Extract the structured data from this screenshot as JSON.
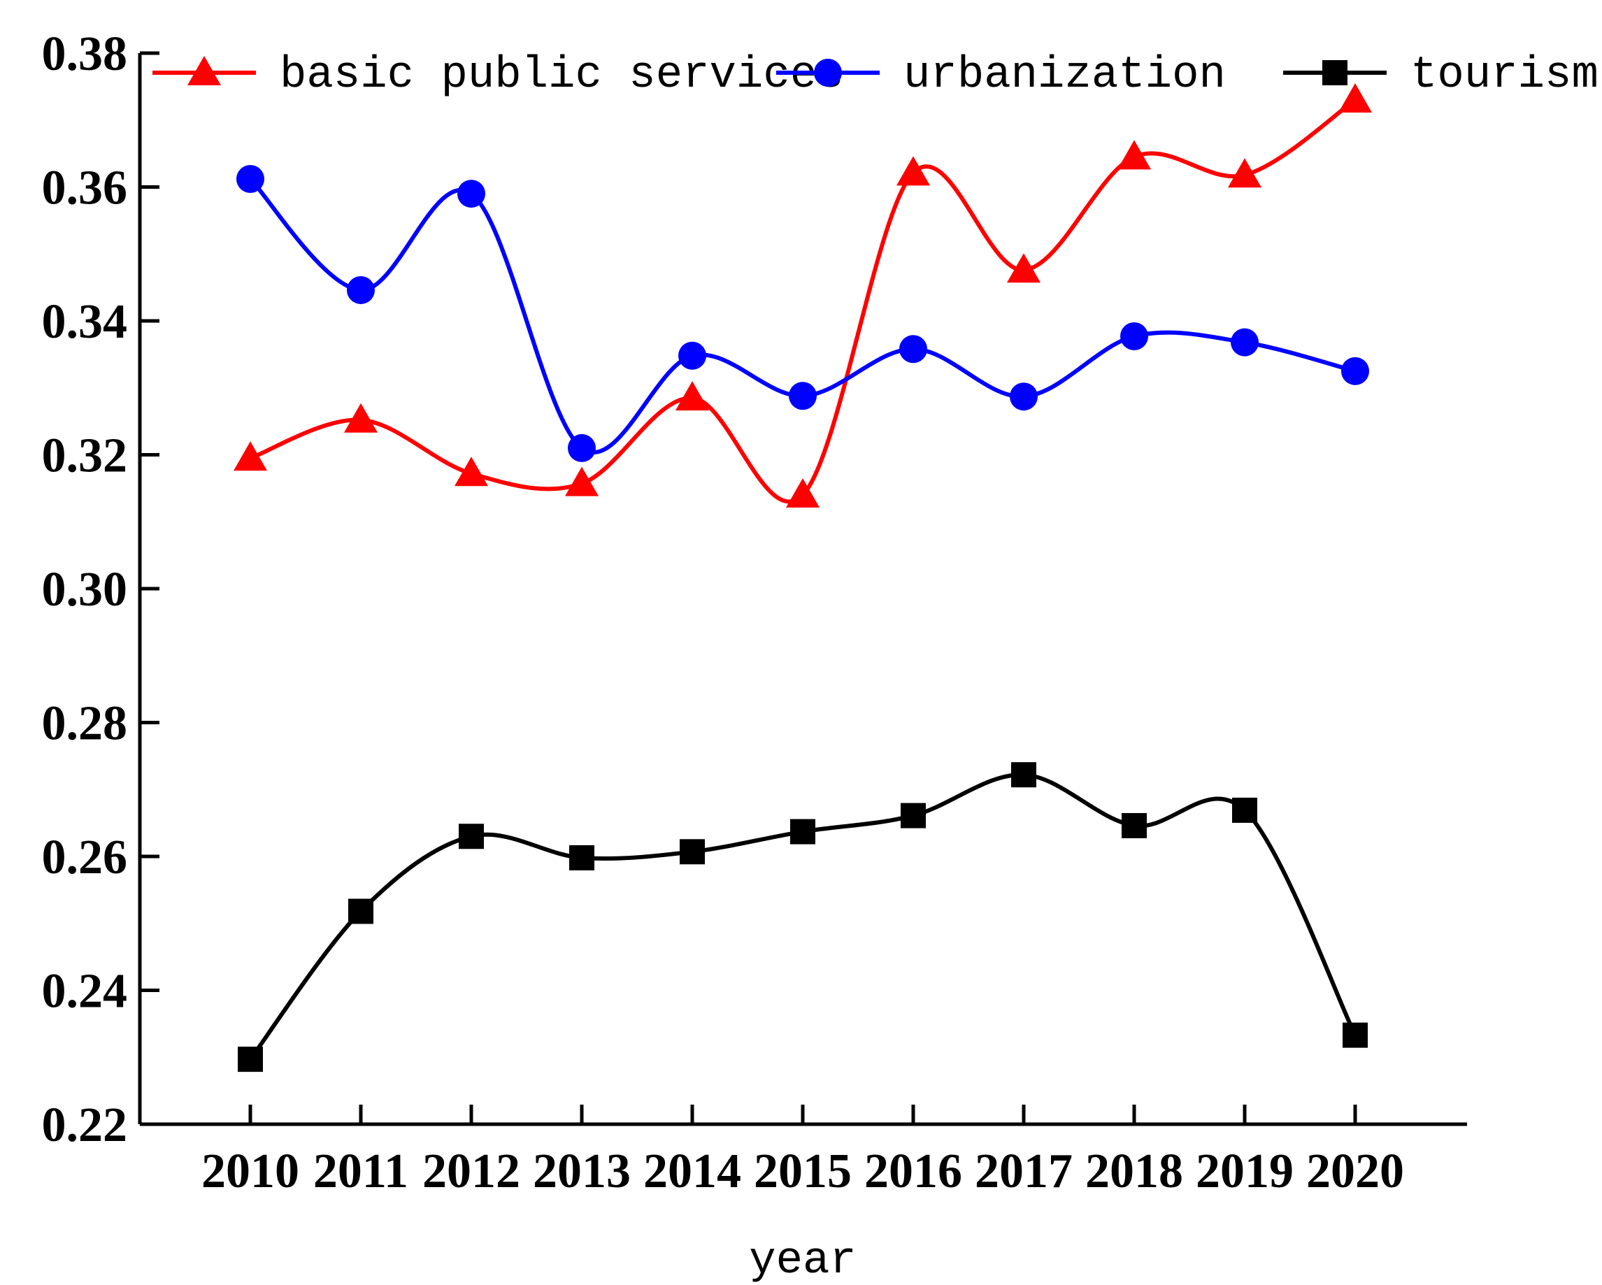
{
  "chart_data": {
    "type": "line",
    "smooth": true,
    "title": "",
    "xlabel": "year",
    "ylabel": "",
    "ylim": [
      0.22,
      0.38
    ],
    "yticks": [
      "0.22",
      "0.24",
      "0.26",
      "0.28",
      "0.30",
      "0.32",
      "0.34",
      "0.36",
      "0.38"
    ],
    "categories": [
      "2010",
      "2011",
      "2012",
      "2013",
      "2014",
      "2015",
      "2016",
      "2017",
      "2018",
      "2019",
      "2020"
    ],
    "legend_position": "top",
    "grid": false,
    "series": [
      {
        "name": "basic public services",
        "color": "#ff0000",
        "marker": "triangle",
        "values": [
          0.3195,
          0.3252,
          0.3172,
          0.3157,
          0.3285,
          0.314,
          0.3621,
          0.3476,
          0.3645,
          0.3618,
          0.373
        ]
      },
      {
        "name": "urbanization",
        "color": "#0000ff",
        "marker": "circle",
        "values": [
          0.3612,
          0.3446,
          0.359,
          0.321,
          0.3348,
          0.3288,
          0.3358,
          0.3287,
          0.3377,
          0.3368,
          0.3325
        ]
      },
      {
        "name": "tourism",
        "color": "#000000",
        "marker": "square",
        "values": [
          0.2297,
          0.2518,
          0.263,
          0.2598,
          0.2607,
          0.2637,
          0.2661,
          0.2722,
          0.2646,
          0.2669,
          0.2333
        ]
      }
    ]
  }
}
